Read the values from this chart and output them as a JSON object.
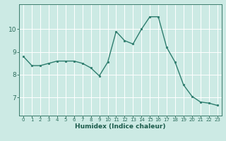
{
  "x": [
    0,
    1,
    2,
    3,
    4,
    5,
    6,
    7,
    8,
    9,
    10,
    11,
    12,
    13,
    14,
    15,
    16,
    17,
    18,
    19,
    20,
    21,
    22,
    23
  ],
  "y": [
    8.8,
    8.4,
    8.4,
    8.5,
    8.6,
    8.6,
    8.6,
    8.5,
    8.3,
    7.95,
    8.55,
    9.9,
    9.5,
    9.35,
    10.0,
    10.55,
    10.55,
    9.2,
    8.55,
    7.55,
    7.05,
    6.8,
    6.75,
    6.65
  ],
  "line_color": "#2e7d6e",
  "marker": "o",
  "markersize": 1.8,
  "linewidth": 1.0,
  "xlabel": "Humidex (Indice chaleur)",
  "ylabel": "",
  "title": "",
  "bg_color": "#cceae4",
  "grid_color": "#ffffff",
  "axis_color": "#3a7a6a",
  "tick_color": "#2e6e5e",
  "label_color": "#1a5a4a",
  "xlabel_fontsize": 6.5,
  "ytick_fontsize": 6.5,
  "xtick_fontsize": 5.0,
  "yticks": [
    7,
    8,
    9,
    10
  ],
  "xticks": [
    0,
    1,
    2,
    3,
    4,
    5,
    6,
    7,
    8,
    9,
    10,
    11,
    12,
    13,
    14,
    15,
    16,
    17,
    18,
    19,
    20,
    21,
    22,
    23
  ],
  "ylim": [
    6.2,
    11.1
  ],
  "xlim": [
    -0.5,
    23.5
  ]
}
